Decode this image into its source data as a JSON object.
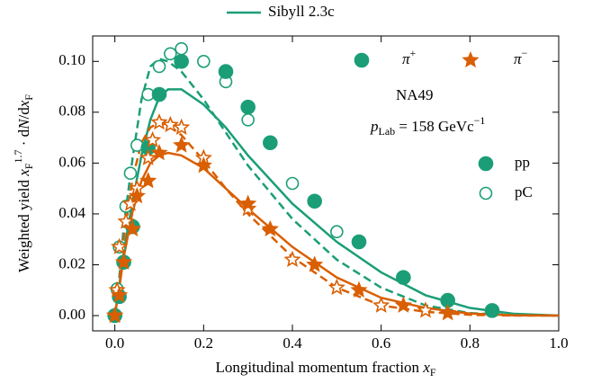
{
  "chart_data": {
    "type": "scatter",
    "xlabel": [
      {
        "text": "Longitudinal momentum fraction "
      },
      {
        "text": "x",
        "style": "italic"
      },
      {
        "text": "F",
        "style": "sub"
      }
    ],
    "ylabel": [
      {
        "text": "Weighted yield "
      },
      {
        "text": "x",
        "style": "italic"
      },
      {
        "text": "F",
        "style": "sub"
      },
      {
        "text": "1.7",
        "style": "sup"
      },
      {
        "text": " · d"
      },
      {
        "text": "N",
        "style": "italic"
      },
      {
        "text": "/d"
      },
      {
        "text": "x",
        "style": "italic"
      },
      {
        "text": "F",
        "style": "sub"
      }
    ],
    "xlim": [
      -0.05,
      1.0
    ],
    "ylim": [
      -0.006,
      0.11
    ],
    "xticks": [
      {
        "value": 0,
        "label": "0.0"
      },
      0.2,
      0.4,
      0.6,
      0.8,
      {
        "value": 1,
        "label": "1.0"
      }
    ],
    "yticks": [
      {
        "value": 0,
        "label": "0.00"
      },
      {
        "value": 0.02,
        "label": "0.02"
      },
      {
        "value": 0.04,
        "label": "0.04"
      },
      {
        "value": 0.06,
        "label": "0.06"
      },
      {
        "value": 0.08,
        "label": "0.08"
      },
      {
        "value": 0.1,
        "label": "0.10"
      }
    ],
    "legend": {
      "model": {
        "color": "#1b9e77",
        "text": "Sibyll 2.3c"
      },
      "particles": [
        {
          "marker": "circle",
          "filled": true,
          "color": "#1b9e77",
          "label": [
            {
              "text": "π",
              "style": "italic"
            },
            {
              "text": "+",
              "style": "sup"
            }
          ]
        },
        {
          "marker": "star",
          "filled": true,
          "color": "#d95f02",
          "label": [
            {
              "text": "π",
              "style": "italic"
            },
            {
              "text": "−",
              "style": "sup"
            }
          ]
        }
      ],
      "experiment": "NA49",
      "beam": [
        {
          "text": "p",
          "style": "italic"
        },
        {
          "text": "Lab",
          "style": "sub"
        },
        {
          "text": " = 158 GeVc"
        },
        {
          "text": "−1",
          "style": "sup"
        }
      ],
      "targets": [
        {
          "marker": "circle",
          "filled": true,
          "color": "#1b9e77",
          "label": "pp"
        },
        {
          "marker": "circle",
          "filled": false,
          "color": "#1b9e77",
          "label": "pC"
        }
      ]
    },
    "lines": [
      {
        "color": "#1b9e77",
        "dashed": false,
        "x": [
          0,
          0.01,
          0.02,
          0.04,
          0.06,
          0.08,
          0.1,
          0.12,
          0.15,
          0.2,
          0.25,
          0.3,
          0.4,
          0.5,
          0.6,
          0.7,
          0.8,
          0.9,
          1.0
        ],
        "values": [
          0,
          0.012,
          0.025,
          0.045,
          0.063,
          0.077,
          0.086,
          0.089,
          0.089,
          0.083,
          0.074,
          0.063,
          0.044,
          0.029,
          0.017,
          0.008,
          0.003,
          0.0007,
          0
        ]
      },
      {
        "color": "#1b9e77",
        "dashed": true,
        "x": [
          0,
          0.01,
          0.02,
          0.04,
          0.06,
          0.08,
          0.1,
          0.12,
          0.15,
          0.2,
          0.25,
          0.3,
          0.4,
          0.5,
          0.6,
          0.7,
          0.8,
          0.9,
          1.0
        ],
        "values": [
          0,
          0.015,
          0.035,
          0.062,
          0.085,
          0.098,
          0.101,
          0.1,
          0.096,
          0.085,
          0.072,
          0.059,
          0.038,
          0.022,
          0.011,
          0.004,
          0.001,
          0.0002,
          0
        ]
      },
      {
        "color": "#d95f02",
        "dashed": false,
        "x": [
          0,
          0.01,
          0.02,
          0.04,
          0.06,
          0.08,
          0.1,
          0.12,
          0.15,
          0.2,
          0.25,
          0.3,
          0.4,
          0.5,
          0.6,
          0.7,
          0.8,
          0.9,
          1.0
        ],
        "values": [
          0,
          0.011,
          0.023,
          0.041,
          0.053,
          0.06,
          0.063,
          0.064,
          0.063,
          0.058,
          0.05,
          0.042,
          0.027,
          0.015,
          0.007,
          0.003,
          0.0008,
          0.0001,
          0
        ]
      },
      {
        "color": "#d95f02",
        "dashed": true,
        "x": [
          0,
          0.01,
          0.02,
          0.04,
          0.06,
          0.08,
          0.1,
          0.12,
          0.15,
          0.2,
          0.25,
          0.3,
          0.4,
          0.5,
          0.6,
          0.7,
          0.8,
          0.9,
          1.0
        ],
        "values": [
          0,
          0.013,
          0.03,
          0.054,
          0.068,
          0.074,
          0.076,
          0.075,
          0.071,
          0.061,
          0.05,
          0.04,
          0.023,
          0.011,
          0.004,
          0.0015,
          0.0003,
          0,
          0
        ]
      }
    ],
    "series": [
      {
        "marker": "circle",
        "filled": false,
        "color": "#1b9e77",
        "x": [
          0,
          0.005,
          0.01,
          0.025,
          0.035,
          0.05,
          0.075,
          0.1,
          0.125,
          0.15,
          0.2,
          0.25,
          0.3,
          0.4,
          0.5
        ],
        "values": [
          0,
          0.0105,
          0.027,
          0.043,
          0.056,
          0.067,
          0.087,
          0.098,
          0.103,
          0.105,
          0.1,
          0.092,
          0.077,
          0.052,
          0.033
        ]
      },
      {
        "marker": "circle",
        "filled": true,
        "color": "#1b9e77",
        "x": [
          0,
          0.01,
          0.02,
          0.04,
          0.075,
          0.1,
          0.15,
          0.25,
          0.3,
          0.35,
          0.45,
          0.55,
          0.65,
          0.75,
          0.85
        ],
        "values": [
          0,
          0.0075,
          0.021,
          0.035,
          0.066,
          0.087,
          0.1,
          0.096,
          0.082,
          0.068,
          0.045,
          0.029,
          0.015,
          0.006,
          0.002
        ]
      },
      {
        "marker": "star",
        "filled": false,
        "color": "#d95f02",
        "x": [
          0,
          0.005,
          0.01,
          0.025,
          0.035,
          0.05,
          0.075,
          0.085,
          0.1,
          0.125,
          0.15,
          0.2,
          0.3,
          0.4,
          0.5,
          0.6,
          0.7
        ],
        "values": [
          0,
          0.01,
          0.027,
          0.037,
          0.044,
          0.05,
          0.062,
          0.069,
          0.076,
          0.075,
          0.074,
          0.062,
          0.042,
          0.022,
          0.011,
          0.004,
          0.002
        ]
      },
      {
        "marker": "star",
        "filled": true,
        "color": "#d95f02",
        "x": [
          0,
          0.01,
          0.02,
          0.04,
          0.05,
          0.075,
          0.1,
          0.15,
          0.2,
          0.3,
          0.35,
          0.45,
          0.55,
          0.65,
          0.75
        ],
        "values": [
          0,
          0.008,
          0.021,
          0.034,
          0.047,
          0.053,
          0.064,
          0.067,
          0.059,
          0.044,
          0.034,
          0.02,
          0.01,
          0.004,
          0.001
        ]
      }
    ]
  }
}
